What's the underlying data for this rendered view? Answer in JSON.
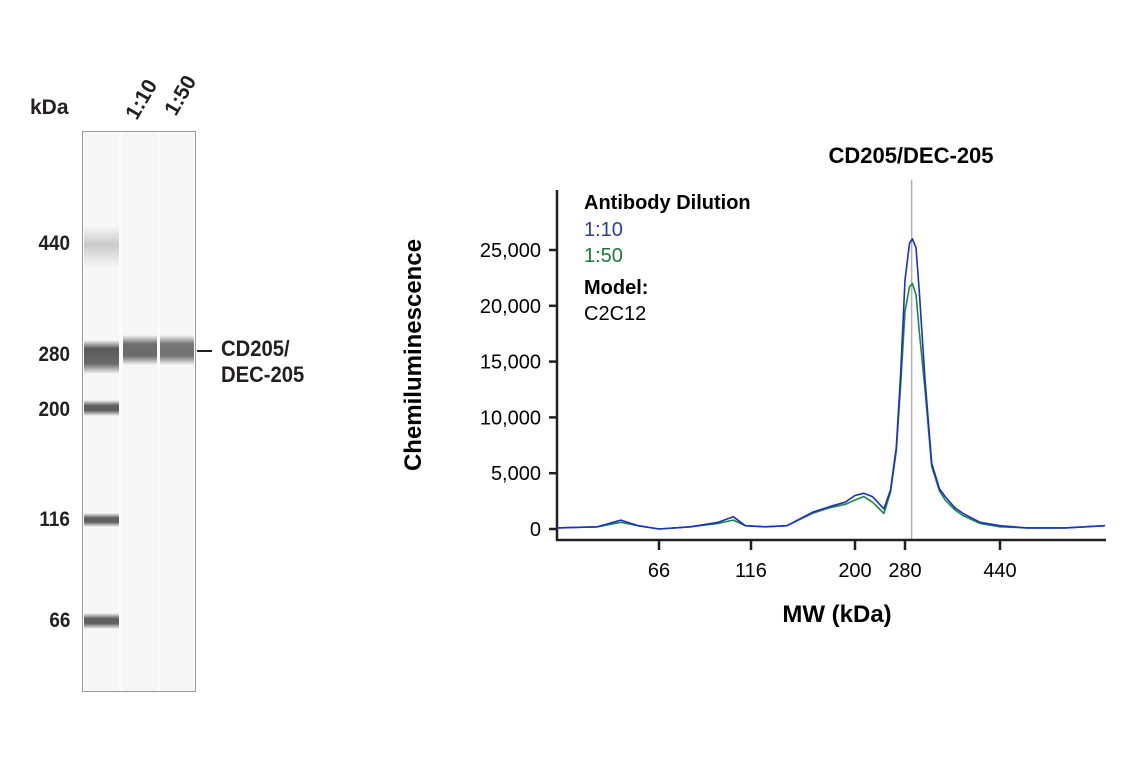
{
  "blot": {
    "unit_label": "kDa",
    "lane_labels": [
      "1:10",
      "1:50"
    ],
    "markers": [
      "440",
      "280",
      "200",
      "116",
      "66"
    ],
    "band_label_line1": "CD205/",
    "band_label_line2": "DEC-205"
  },
  "chart_data": {
    "type": "line",
    "title": "CD205/DEC-205",
    "xlabel": "MW (kDa)",
    "ylabel": "Chemiluminescence",
    "x_ticks": [
      66,
      116,
      200,
      280,
      440
    ],
    "x_tick_labels": [
      "66",
      "116",
      "200",
      "280",
      "440"
    ],
    "y_ticks": [
      0,
      5000,
      10000,
      15000,
      20000,
      25000
    ],
    "y_tick_labels": [
      "0",
      "5,000",
      "10,000",
      "15,000",
      "20,000",
      "25,000"
    ],
    "xlim": [
      35,
      725
    ],
    "ylim": [
      0,
      28000
    ],
    "reference_line_kda": 289,
    "legend": {
      "title": "Antibody Dilution",
      "model_label": "Model:",
      "model_value": "C2C12",
      "placement": "top-left"
    },
    "series": [
      {
        "name": "1:10",
        "color": "#1a2fc8",
        "points": [
          [
            35,
            100
          ],
          [
            45,
            200
          ],
          [
            52,
            800
          ],
          [
            58,
            300
          ],
          [
            66,
            0
          ],
          [
            80,
            200
          ],
          [
            95,
            600
          ],
          [
            104,
            1100
          ],
          [
            112,
            300
          ],
          [
            125,
            200
          ],
          [
            140,
            300
          ],
          [
            160,
            1500
          ],
          [
            175,
            2000
          ],
          [
            190,
            2400
          ],
          [
            200,
            3000
          ],
          [
            212,
            3200
          ],
          [
            225,
            2900
          ],
          [
            243,
            1800
          ],
          [
            254,
            3500
          ],
          [
            264,
            7300
          ],
          [
            272,
            14000
          ],
          [
            280,
            22300
          ],
          [
            286,
            25600
          ],
          [
            290,
            26000
          ],
          [
            295,
            25200
          ],
          [
            300,
            21000
          ],
          [
            308,
            13400
          ],
          [
            318,
            5900
          ],
          [
            330,
            3600
          ],
          [
            339,
            2900
          ],
          [
            355,
            1900
          ],
          [
            369,
            1400
          ],
          [
            400,
            600
          ],
          [
            440,
            300
          ],
          [
            500,
            100
          ],
          [
            600,
            100
          ],
          [
            725,
            300
          ]
        ]
      },
      {
        "name": "1:50",
        "color": "#1a8a3c",
        "points": [
          [
            35,
            100
          ],
          [
            45,
            200
          ],
          [
            52,
            600
          ],
          [
            58,
            300
          ],
          [
            66,
            0
          ],
          [
            80,
            200
          ],
          [
            95,
            500
          ],
          [
            104,
            800
          ],
          [
            112,
            300
          ],
          [
            125,
            200
          ],
          [
            140,
            300
          ],
          [
            160,
            1400
          ],
          [
            175,
            1900
          ],
          [
            190,
            2200
          ],
          [
            200,
            2600
          ],
          [
            212,
            2900
          ],
          [
            225,
            2400
          ],
          [
            243,
            1400
          ],
          [
            254,
            3300
          ],
          [
            264,
            7000
          ],
          [
            272,
            13000
          ],
          [
            280,
            19500
          ],
          [
            286,
            21700
          ],
          [
            290,
            22000
          ],
          [
            295,
            21000
          ],
          [
            300,
            17500
          ],
          [
            308,
            12500
          ],
          [
            318,
            5600
          ],
          [
            330,
            3400
          ],
          [
            339,
            2600
          ],
          [
            355,
            1700
          ],
          [
            369,
            1200
          ],
          [
            400,
            500
          ],
          [
            440,
            200
          ],
          [
            500,
            100
          ],
          [
            600,
            100
          ],
          [
            725,
            300
          ]
        ]
      }
    ]
  }
}
